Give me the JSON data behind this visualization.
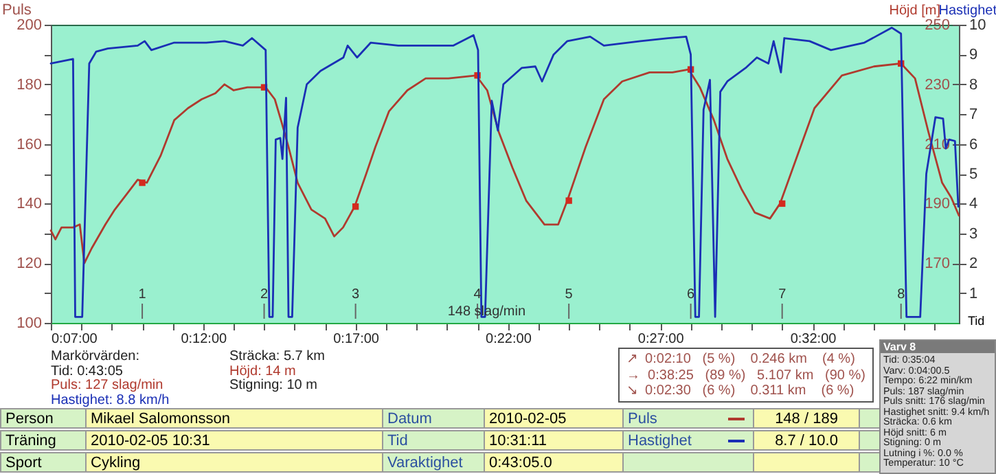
{
  "chart_data": {
    "type": "line",
    "ylabel": "Puls",
    "y2label": "Höjd [m]",
    "y3label": "Hastighet",
    "xlabel": "Tid",
    "xlim": [
      7,
      36.8
    ],
    "xticks": [
      {
        "value": 7,
        "label": "0:07:00"
      },
      {
        "value": 8,
        "label": null
      },
      {
        "value": 9,
        "label": null
      },
      {
        "value": 10,
        "label": null
      },
      {
        "value": 11,
        "label": null
      },
      {
        "value": 12,
        "label": "0:12:00"
      },
      {
        "value": 13,
        "label": null
      },
      {
        "value": 14,
        "label": null
      },
      {
        "value": 15,
        "label": null
      },
      {
        "value": 16,
        "label": null
      },
      {
        "value": 17,
        "label": "0:17:00"
      },
      {
        "value": 18,
        "label": null
      },
      {
        "value": 19,
        "label": null
      },
      {
        "value": 20,
        "label": null
      },
      {
        "value": 21,
        "label": null
      },
      {
        "value": 22,
        "label": "0:22:00"
      },
      {
        "value": 23,
        "label": null
      },
      {
        "value": 24,
        "label": null
      },
      {
        "value": 25,
        "label": null
      },
      {
        "value": 26,
        "label": null
      },
      {
        "value": 27,
        "label": "0:27:00"
      },
      {
        "value": 28,
        "label": null
      },
      {
        "value": 29,
        "label": null
      },
      {
        "value": 30,
        "label": null
      },
      {
        "value": 31,
        "label": null
      },
      {
        "value": 32,
        "label": "0:32:00"
      },
      {
        "value": 33,
        "label": null
      },
      {
        "value": 34,
        "label": null
      },
      {
        "value": 35,
        "label": null
      },
      {
        "value": 36,
        "label": null
      }
    ],
    "ylim": [
      100,
      200
    ],
    "yticks": [
      100,
      {
        "value": 110,
        "label": null
      },
      120,
      {
        "value": 130,
        "label": null
      },
      140,
      {
        "value": 150,
        "label": null
      },
      160,
      {
        "value": 170,
        "label": null
      },
      180,
      {
        "value": 190,
        "label": null
      },
      200
    ],
    "y2lim": [
      150,
      250
    ],
    "y2ticks": [
      170,
      190,
      210,
      230,
      250
    ],
    "y3lim": [
      0,
      10
    ],
    "y3ticks": [
      1,
      2,
      3,
      4,
      5,
      6,
      7,
      8,
      9,
      10
    ],
    "series": [
      {
        "color": "#b03a2e",
        "axis": "y",
        "x": [
          7.0,
          7.15,
          7.35,
          7.73,
          7.95,
          8.1,
          8.34,
          8.79,
          9.1,
          9.55,
          9.85,
          10.15,
          10.6,
          11.05,
          11.5,
          11.95,
          12.4,
          12.7,
          13.0,
          13.45,
          14.05,
          14.35,
          14.58,
          14.8,
          15.1,
          15.55,
          16.0,
          16.3,
          16.59,
          16.97,
          17.35,
          17.65,
          18.1,
          18.7,
          19.3,
          20.05,
          20.95,
          21.32,
          21.7,
          22.15,
          22.6,
          23.2,
          23.65,
          23.95,
          24.55,
          25.15,
          25.75,
          26.65,
          27.4,
          27.93,
          28.3,
          28.76,
          29.2,
          29.66,
          30.1,
          30.6,
          30.93,
          31.46,
          32.06,
          32.96,
          34.01,
          34.9,
          35.36,
          35.8,
          36.25,
          36.55,
          36.8
        ],
        "values": [
          131,
          128,
          132,
          132,
          133,
          120,
          125,
          133,
          138,
          144,
          148,
          147,
          156,
          168,
          172,
          175,
          177,
          180,
          178,
          179,
          179,
          175,
          167,
          159,
          147,
          138,
          135,
          129,
          132,
          139,
          150,
          159,
          171,
          178,
          182,
          182,
          183,
          178,
          164,
          152,
          141,
          133,
          133,
          141,
          159,
          175,
          181,
          184,
          184,
          185,
          179,
          168,
          155,
          145,
          137,
          135,
          140,
          155,
          172,
          183,
          186,
          187,
          182,
          164,
          147,
          142,
          136
        ]
      },
      {
        "type": "scatter",
        "marker": "square",
        "color": "#d42a1e",
        "axis": "y",
        "x": [
          10,
          14,
          17,
          21,
          24,
          28,
          31,
          34.9
        ],
        "values": [
          147,
          179,
          139,
          183,
          141,
          185,
          140,
          187
        ]
      },
      {
        "color": "#1a2fb5",
        "axis": "y3",
        "x": [
          7.0,
          7.73,
          7.8,
          8.03,
          8.26,
          8.49,
          8.87,
          9.85,
          10.08,
          10.3,
          11.05,
          12.1,
          12.7,
          13.3,
          13.6,
          14.05,
          14.17,
          14.28,
          14.38,
          14.53,
          14.6,
          14.72,
          14.8,
          14.92,
          15.1,
          15.4,
          15.85,
          16.6,
          16.74,
          17.05,
          17.5,
          18.4,
          19.15,
          20.2,
          20.87,
          21.02,
          21.13,
          21.25,
          21.47,
          21.67,
          21.85,
          22.45,
          22.9,
          23.12,
          23.5,
          23.95,
          24.7,
          25.15,
          26.35,
          27.25,
          27.85,
          28.0,
          28.15,
          28.27,
          28.42,
          28.63,
          28.8,
          28.97,
          29.2,
          29.8,
          30.17,
          30.55,
          30.72,
          30.96,
          31.07,
          31.9,
          32.6,
          33.7,
          34.6,
          34.9,
          35.08,
          35.53,
          35.73,
          36.03,
          36.28,
          36.37,
          36.48,
          36.67,
          36.78
        ],
        "values": [
          8.7,
          8.85,
          0.2,
          0.2,
          8.7,
          9.1,
          9.2,
          9.3,
          9.45,
          9.15,
          9.4,
          9.4,
          9.45,
          9.3,
          9.55,
          9.15,
          0.2,
          0.2,
          6.15,
          6.2,
          5.5,
          7.55,
          0.2,
          0.2,
          6.55,
          8.0,
          8.45,
          8.9,
          9.3,
          8.9,
          9.4,
          9.3,
          9.3,
          9.3,
          9.65,
          9.15,
          0.2,
          0.2,
          7.45,
          6.45,
          8.0,
          8.55,
          8.6,
          8.1,
          9.0,
          9.45,
          9.6,
          9.3,
          9.45,
          9.55,
          9.6,
          9.0,
          0.2,
          0.2,
          7.15,
          8.15,
          0.2,
          7.75,
          8.1,
          8.55,
          8.9,
          8.7,
          9.45,
          8.4,
          9.55,
          9.45,
          9.15,
          9.4,
          9.9,
          9.7,
          0.2,
          0.2,
          5.0,
          6.9,
          6.85,
          5.85,
          6.15,
          6.1,
          3.9
        ]
      }
    ],
    "annotations": [
      {
        "text": "148 slag/min",
        "x": 21.3,
        "y": 104
      },
      "1",
      "2",
      "3",
      "4",
      "5",
      "6",
      "7",
      "8",
      "Markörvärden:",
      "Tid: 0:43:05",
      "Puls: 127 slag/min",
      "Hastighet: 8.8 km/h",
      "Sträcka: 5.7 km",
      "Höjd: 14 m",
      "Stigning: 10 m",
      "↗  0:02:10   (5 %)    0.246 km    (4 %)",
      "→  0:38:25   (89 %)   5.107 km   (90 %)",
      "↘  0:02:30   (6 %)    0.311 km    (6 %)",
      "Person",
      "Mikael Salomonsson",
      "Datum",
      "2010-02-05",
      "Puls",
      "148 / 189",
      "Träning",
      "2010-02-05 10:31",
      "Tid",
      "10:31:11",
      "Hastighet",
      "8.7 / 10.0",
      "Sport",
      "Cykling",
      "Varaktighet",
      "0:43:05.0",
      "Varv 8",
      "Tid: 0:35:04",
      "Varv: 0:04:00.5",
      "Tempo: 6:22 min/km",
      "Puls: 187 slag/min",
      "Puls snitt: 176 slag/min",
      "Hastighet snitt: 9.4 km/h",
      "Sträcka: 0.6 km",
      "Höjd snitt: 6 m",
      "Stigning: 0 m",
      "Lutning i %: 0.0 %",
      "Temperatur: 10 °C"
    ]
  }
}
